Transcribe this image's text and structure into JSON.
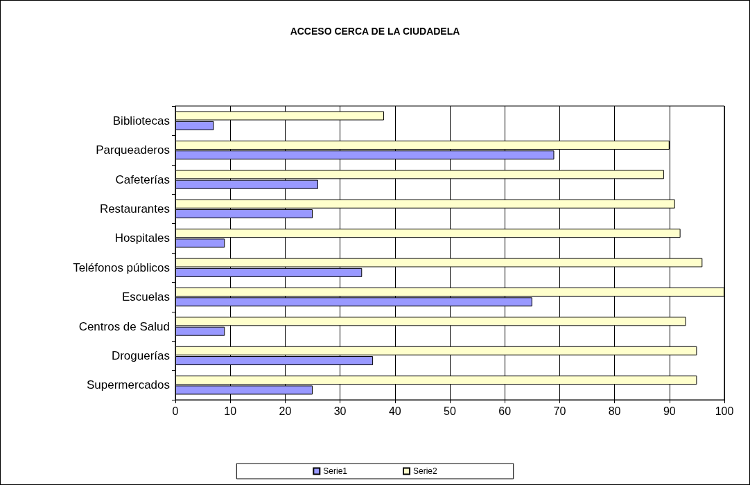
{
  "chart_data": {
    "type": "bar",
    "orientation": "horizontal",
    "title": "ACCESO CERCA DE LA CIUDADELA",
    "categories": [
      "Bibliotecas",
      "Parqueaderos",
      "Cafeterías",
      "Restaurantes",
      "Hospitales",
      "Teléfonos públicos",
      "Escuelas",
      "Centros de Salud",
      "Droguerías",
      "Supermercados"
    ],
    "series": [
      {
        "name": "Serie1",
        "color": "#9999ff",
        "values": [
          7,
          69,
          26,
          25,
          9,
          34,
          65,
          9,
          36,
          25
        ]
      },
      {
        "name": "Serie2",
        "color": "#ffffcc",
        "values": [
          38,
          90,
          89,
          91,
          92,
          96,
          100,
          93,
          95,
          95
        ]
      }
    ],
    "xlim": [
      0,
      100
    ],
    "xticks": [
      0,
      10,
      20,
      30,
      40,
      50,
      60,
      70,
      80,
      90,
      100
    ],
    "grid": "x",
    "legend": "bottom"
  }
}
